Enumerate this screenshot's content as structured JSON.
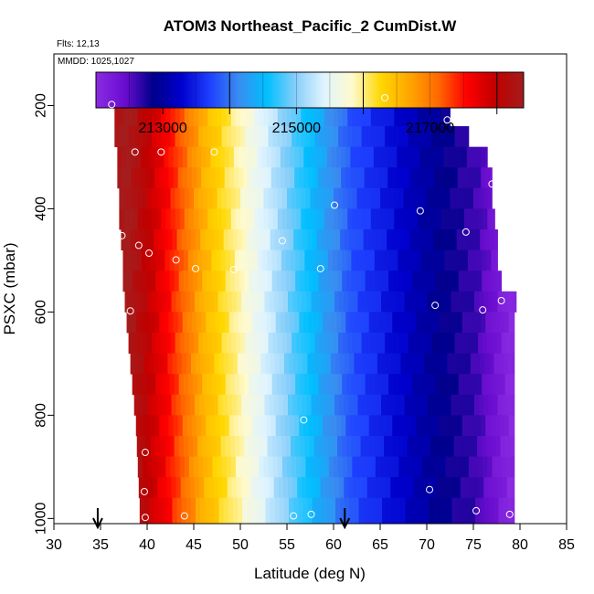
{
  "chart_data": {
    "type": "heatmap",
    "title": "ATOM3 Northeast_Pacific_2 CumDist.W",
    "flights_label": "Flts: 12,13",
    "date_label": "MMDD: 1025,1027",
    "xlabel": "Latitude (deg N)",
    "ylabel": "PSXC (mbar)",
    "xlim": [
      30,
      85
    ],
    "ylim": [
      1010,
      100
    ],
    "y_reversed": true,
    "x_ticks": [
      30,
      35,
      40,
      45,
      50,
      55,
      60,
      65,
      70,
      75,
      80,
      85
    ],
    "y_ticks": [
      200,
      400,
      600,
      800,
      1000
    ],
    "colorbar": {
      "min": 212000,
      "max": 218400,
      "tick_values": [
        213000,
        215000,
        217000
      ],
      "tick_labels": [
        "213000",
        "215000",
        "217000"
      ],
      "divider_values": [
        214000,
        216000,
        218000
      ],
      "colors": [
        "#8a2be2",
        "#6a0dcf",
        "#00008b",
        "#0000cd",
        "#1e40ff",
        "#3a8cf0",
        "#00bfff",
        "#87cefa",
        "#e0f4ff",
        "#fffacd",
        "#ffd700",
        "#ffa500",
        "#ff6a00",
        "#ff0000",
        "#c00000",
        "#a51c1c"
      ]
    },
    "field": {
      "description_value": "CumDist.W value as function of latitude",
      "lat_at_value": [
        [
          29.7,
          212000
        ],
        [
          38.0,
          218400
        ],
        [
          42.0,
          217600
        ],
        [
          46.0,
          216600
        ],
        [
          51.5,
          215600
        ],
        [
          56.0,
          214800
        ],
        [
          62.0,
          213800
        ],
        [
          70.0,
          213000
        ],
        [
          75.5,
          212600
        ],
        [
          79.0,
          212050
        ]
      ],
      "rows": [
        {
          "p0": 165,
          "p1": 205,
          "lat_min": 36,
          "lat_max": 65.5
        },
        {
          "p0": 205,
          "p1": 240,
          "lat_min": 36.5,
          "lat_max": 72.5
        },
        {
          "p0": 240,
          "p1": 280,
          "lat_min": 36.5,
          "lat_max": 74.5
        },
        {
          "p0": 280,
          "p1": 320,
          "lat_min": 36.8,
          "lat_max": 76.5
        },
        {
          "p0": 320,
          "p1": 360,
          "lat_min": 36.8,
          "lat_max": 77.0
        },
        {
          "p0": 360,
          "p1": 400,
          "lat_min": 37.0,
          "lat_max": 77.0
        },
        {
          "p0": 400,
          "p1": 440,
          "lat_min": 37.0,
          "lat_max": 77.3
        },
        {
          "p0": 440,
          "p1": 480,
          "lat_min": 37.2,
          "lat_max": 77.6
        },
        {
          "p0": 480,
          "p1": 520,
          "lat_min": 37.4,
          "lat_max": 77.6
        },
        {
          "p0": 520,
          "p1": 560,
          "lat_min": 37.4,
          "lat_max": 78.0
        },
        {
          "p0": 560,
          "p1": 600,
          "lat_min": 37.6,
          "lat_max": 79.6
        },
        {
          "p0": 600,
          "p1": 640,
          "lat_min": 37.8,
          "lat_max": 79.4
        },
        {
          "p0": 640,
          "p1": 680,
          "lat_min": 38.0,
          "lat_max": 79.4
        },
        {
          "p0": 680,
          "p1": 720,
          "lat_min": 38.2,
          "lat_max": 79.4
        },
        {
          "p0": 720,
          "p1": 760,
          "lat_min": 38.4,
          "lat_max": 79.4
        },
        {
          "p0": 760,
          "p1": 800,
          "lat_min": 38.6,
          "lat_max": 79.4
        },
        {
          "p0": 800,
          "p1": 840,
          "lat_min": 38.8,
          "lat_max": 79.4
        },
        {
          "p0": 840,
          "p1": 880,
          "lat_min": 38.9,
          "lat_max": 79.4
        },
        {
          "p0": 880,
          "p1": 920,
          "lat_min": 39.0,
          "lat_max": 79.4
        },
        {
          "p0": 920,
          "p1": 960,
          "lat_min": 39.1,
          "lat_max": 79.4
        },
        {
          "p0": 960,
          "p1": 1010,
          "lat_min": 39.2,
          "lat_max": 79.4
        }
      ]
    },
    "points": [
      {
        "x": 36.2,
        "y": 198
      },
      {
        "x": 65.5,
        "y": 185
      },
      {
        "x": 72.2,
        "y": 228
      },
      {
        "x": 38.7,
        "y": 290
      },
      {
        "x": 41.5,
        "y": 290
      },
      {
        "x": 47.2,
        "y": 290
      },
      {
        "x": 77.0,
        "y": 352
      },
      {
        "x": 60.1,
        "y": 393
      },
      {
        "x": 69.3,
        "y": 404
      },
      {
        "x": 74.2,
        "y": 445
      },
      {
        "x": 37.3,
        "y": 452
      },
      {
        "x": 39.1,
        "y": 471
      },
      {
        "x": 40.2,
        "y": 486
      },
      {
        "x": 43.1,
        "y": 499
      },
      {
        "x": 45.2,
        "y": 516
      },
      {
        "x": 49.3,
        "y": 518
      },
      {
        "x": 54.5,
        "y": 462
      },
      {
        "x": 58.6,
        "y": 516
      },
      {
        "x": 38.2,
        "y": 598
      },
      {
        "x": 70.9,
        "y": 587
      },
      {
        "x": 78.0,
        "y": 578
      },
      {
        "x": 76.0,
        "y": 596
      },
      {
        "x": 56.8,
        "y": 809
      },
      {
        "x": 39.8,
        "y": 872
      },
      {
        "x": 39.7,
        "y": 948
      },
      {
        "x": 70.3,
        "y": 944
      },
      {
        "x": 75.3,
        "y": 985
      },
      {
        "x": 78.9,
        "y": 992
      },
      {
        "x": 44.0,
        "y": 995
      },
      {
        "x": 55.7,
        "y": 995
      },
      {
        "x": 57.6,
        "y": 992
      },
      {
        "x": 39.8,
        "y": 998
      }
    ],
    "arrows": [
      {
        "x": 34.7
      },
      {
        "x": 61.2
      }
    ]
  }
}
